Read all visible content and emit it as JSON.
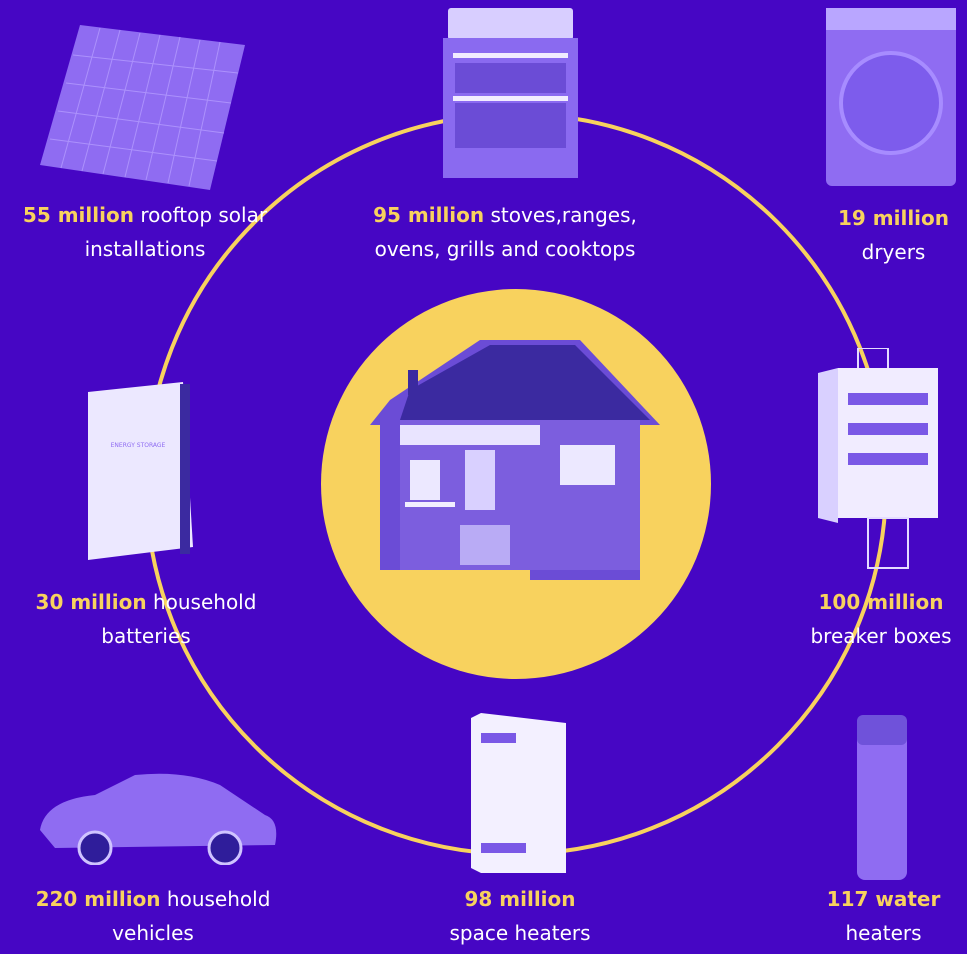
{
  "colors": {
    "background": "#4606c4",
    "accent": "#f8d25e",
    "text": "#ffffff",
    "illustration": "#8f6cf2"
  },
  "center": {
    "icon": "house-icon"
  },
  "items": [
    {
      "id": "solar",
      "icon": "solar-panel-icon",
      "highlight": "55 million",
      "line1": "rooftop solar",
      "line2": "installations"
    },
    {
      "id": "stoves",
      "icon": "stove-icon",
      "highlight": "95 million",
      "line1": "stoves,ranges,",
      "line2": "ovens, grills and cooktops"
    },
    {
      "id": "dryers",
      "icon": "dryer-icon",
      "highlight": "19 million",
      "line1": "",
      "line2": "dryers"
    },
    {
      "id": "batteries",
      "icon": "home-battery-icon",
      "highlight": "30 million",
      "line1": "household",
      "line2": "batteries"
    },
    {
      "id": "breakers",
      "icon": "breaker-box-icon",
      "highlight": "100 million",
      "line1": "",
      "line2": "breaker boxes"
    },
    {
      "id": "vehicles",
      "icon": "car-icon",
      "highlight": "220 million",
      "line1": "household",
      "line2": "vehicles"
    },
    {
      "id": "space-heaters",
      "icon": "space-heater-icon",
      "highlight": "98 million",
      "line1": "",
      "line2": "space heaters"
    },
    {
      "id": "water-heaters",
      "icon": "water-heater-icon",
      "highlight": "117 water",
      "line1": "",
      "line2": "heaters"
    }
  ]
}
